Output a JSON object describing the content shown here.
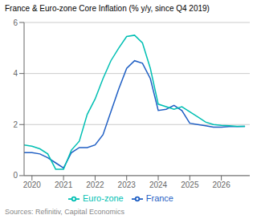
{
  "chart_data": {
    "type": "line",
    "title": "France & Euro-zone Core Inflation (% y/y, since Q4 2019)",
    "annotations": [
      "Sources: Refinitiv, Capital Economics"
    ],
    "x": [
      2019.75,
      2020.0,
      2020.25,
      2020.5,
      2020.75,
      2021.0,
      2021.25,
      2021.5,
      2021.75,
      2022.0,
      2022.25,
      2022.5,
      2022.75,
      2023.0,
      2023.25,
      2023.5,
      2023.75,
      2024.0,
      2024.25,
      2024.5,
      2024.75,
      2025.0,
      2025.25,
      2025.5,
      2025.75,
      2026.0,
      2026.25,
      2026.5,
      2026.75
    ],
    "series": [
      {
        "name": "France",
        "color": "#1f5fc4",
        "values": [
          0.9,
          0.9,
          0.85,
          0.7,
          0.5,
          0.3,
          0.9,
          1.1,
          1.1,
          1.2,
          1.6,
          2.5,
          3.4,
          4.2,
          4.5,
          4.4,
          3.8,
          2.55,
          2.6,
          2.75,
          2.55,
          2.05,
          2.0,
          1.95,
          1.9,
          1.9,
          1.92,
          1.92,
          1.93
        ]
      },
      {
        "name": "Euro-zone",
        "color": "#00bfb3",
        "values": [
          1.2,
          1.15,
          1.05,
          0.85,
          0.25,
          0.25,
          1.0,
          1.35,
          2.4,
          3.0,
          3.8,
          4.5,
          5.0,
          5.45,
          5.5,
          5.2,
          4.2,
          2.8,
          2.7,
          2.6,
          2.7,
          2.5,
          2.3,
          2.1,
          2.0,
          1.97,
          1.95,
          1.93,
          1.93
        ]
      }
    ],
    "xlim": [
      2019.75,
      2026.9
    ],
    "xticks": [
      2020,
      2021,
      2022,
      2023,
      2024,
      2025,
      2026
    ],
    "ylim": [
      0,
      6
    ],
    "yticks": [
      0,
      2,
      4,
      6
    ],
    "grid": true,
    "legend": "bottom"
  }
}
